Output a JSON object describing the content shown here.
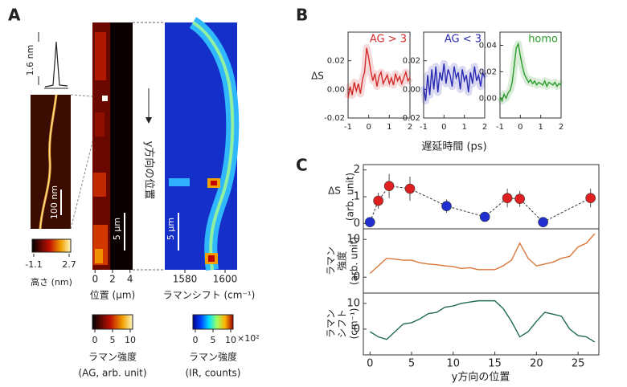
{
  "panel_labels": [
    "A",
    "B",
    "C"
  ],
  "panel_a": {
    "profile_height": "1.6 nm",
    "afm_scale": "100 nm",
    "afm_colorbar": {
      "ticks": [
        -1.1,
        2.7
      ],
      "label": "高さ (nm)"
    },
    "raman_map": {
      "xlim": [
        -0.3,
        4.3
      ],
      "xticks": [
        0,
        2,
        4
      ],
      "xlabel": "位置 (μm)",
      "ylabel": "y方向の位置",
      "scale": "5 μm"
    },
    "spectral_map": {
      "xlim": [
        1570,
        1606
      ],
      "xticks": [
        1580,
        1600
      ],
      "xlabel": "ラマンシフト (cm⁻¹)",
      "scale": "5 μm"
    },
    "colorbar_intensity": {
      "ticks": [
        0,
        5,
        10
      ],
      "label": "ラマン強度",
      "sublabel": "(AG, arb. unit)"
    },
    "colorbar_counts": {
      "ticks": [
        0,
        5,
        10
      ],
      "unit": "×10²",
      "label": "ラマン強度",
      "sublabel": "(IR, counts)"
    }
  },
  "chart_data": [
    {
      "type": "line",
      "ylabel": [
        "ΔS"
      ],
      "xlim": [
        -1,
        2
      ],
      "xticks": [
        -1,
        0,
        1,
        2
      ],
      "ylim": [
        -0.02,
        0.04
      ],
      "yticks": [
        -0.02,
        {
          "value": 0,
          "label": "0.00"
        },
        0.02
      ],
      "x": [
        -1,
        -0.9,
        -0.8,
        -0.7,
        -0.6,
        -0.5,
        -0.4,
        -0.3,
        -0.2,
        -0.1,
        0,
        0.1,
        0.2,
        0.3,
        0.4,
        0.5,
        0.6,
        0.7,
        0.8,
        0.9,
        1,
        1.1,
        1.2,
        1.3,
        1.4,
        1.5,
        1.6,
        1.7,
        1.8,
        1.9,
        2
      ],
      "series": [
        {
          "name": "AG > 3",
          "color": "#d42a2a",
          "values": [
            -0.006,
            0.002,
            -0.004,
            0.005,
            -0.001,
            0.004,
            -0.003,
            0.007,
            0.012,
            0.029,
            0.022,
            0.013,
            0.006,
            0.011,
            0.002,
            0.009,
            0.012,
            0.004,
            0.007,
            0.01,
            0.004,
            0.008,
            0.003,
            0.011,
            0.006,
            0.009,
            0.004,
            0.008,
            0.012,
            0.006,
            0.008
          ]
        }
      ]
    },
    {
      "type": "line",
      "xlabel": "遅延時間 (ps)",
      "xlim": [
        -1,
        2
      ],
      "xticks": [
        -1,
        0,
        1,
        2
      ],
      "ylim": [
        -0.02,
        0.04
      ],
      "yticks": [
        -0.02,
        {
          "value": 0,
          "label": "0.00"
        },
        0.02
      ],
      "x": [
        -1,
        -0.9,
        -0.8,
        -0.7,
        -0.6,
        -0.5,
        -0.4,
        -0.3,
        -0.2,
        -0.1,
        0,
        0.1,
        0.2,
        0.3,
        0.4,
        0.5,
        0.6,
        0.7,
        0.8,
        0.9,
        1,
        1.1,
        1.2,
        1.3,
        1.4,
        1.5,
        1.6,
        1.7,
        1.8,
        1.9,
        2
      ],
      "series": [
        {
          "name": "AG < 3",
          "color": "#2a2ab4",
          "values": [
            0.002,
            -0.008,
            0.01,
            -0.004,
            0.014,
            0.0,
            0.016,
            -0.002,
            0.012,
            0.006,
            0.018,
            0.004,
            0.014,
            0.01,
            0.002,
            0.016,
            0.008,
            0.012,
            0.0,
            0.014,
            0.006,
            0.01,
            -0.002,
            0.012,
            0.004,
            0.016,
            0.006,
            0.01,
            0.002,
            0.012,
            0.008
          ]
        }
      ]
    },
    {
      "type": "line",
      "xlim": [
        -1,
        2
      ],
      "xticks": [
        -1,
        0,
        1,
        2
      ],
      "ylim": [
        -0.015,
        0.05
      ],
      "yticks": [
        {
          "value": 0,
          "label": "0.00"
        },
        0.02,
        0.04
      ],
      "x": [
        -1,
        -0.9,
        -0.8,
        -0.7,
        -0.6,
        -0.5,
        -0.4,
        -0.3,
        -0.2,
        -0.1,
        0,
        0.1,
        0.2,
        0.3,
        0.4,
        0.5,
        0.6,
        0.7,
        0.8,
        0.9,
        1,
        1.1,
        1.2,
        1.3,
        1.4,
        1.5,
        1.6,
        1.7,
        1.8,
        1.9,
        2
      ],
      "series": [
        {
          "name": "homo",
          "color": "#2a9a2a",
          "values": [
            0.001,
            -0.002,
            0.003,
            0.0,
            0.004,
            0.006,
            0.012,
            0.025,
            0.038,
            0.041,
            0.032,
            0.024,
            0.018,
            0.015,
            0.012,
            0.014,
            0.011,
            0.013,
            0.01,
            0.012,
            0.011,
            0.01,
            0.013,
            0.009,
            0.012,
            0.011,
            0.01,
            0.012,
            0.009,
            0.011,
            0.01
          ]
        }
      ]
    },
    {
      "type": "scatter",
      "ylabel": [
        "ΔS",
        "(arb. unit)"
      ],
      "xlim": [
        -0.8,
        27.5
      ],
      "ylim": [
        -0.2,
        2.2
      ],
      "yticks": [
        0,
        1,
        2
      ],
      "x": [
        0,
        1,
        2.3,
        4.8,
        9.2,
        13.8,
        16.5,
        18,
        20.8,
        26.5
      ],
      "series": [
        {
          "values": [
            0.05,
            0.85,
            1.4,
            1.3,
            0.65,
            0.25,
            0.95,
            0.92,
            0.05,
            0.95
          ],
          "errors": [
            0,
            0.3,
            0.45,
            0.45,
            0.25,
            0.15,
            0.35,
            0.3,
            0,
            0.35
          ],
          "color": "#333333",
          "point_colors": [
            "#1f2fd0",
            "#e02020",
            "#e02020",
            "#e02020",
            "#1f2fd0",
            "#1f2fd0",
            "#e02020",
            "#e02020",
            "#1f2fd0",
            "#e02020"
          ]
        }
      ]
    },
    {
      "type": "line",
      "ylabel": [
        "ラマン",
        "強度",
        "(arb. unit)"
      ],
      "xlim": [
        -0.8,
        27.5
      ],
      "ylim": [
        -4.2,
        12.8
      ],
      "yticks": [
        0,
        10
      ],
      "x": [
        0,
        1,
        2,
        3,
        4,
        5,
        6,
        7,
        8,
        9,
        10,
        11,
        12,
        13,
        14,
        15,
        16,
        17,
        18,
        19,
        20,
        21,
        22,
        23,
        24,
        25,
        26,
        27
      ],
      "series": [
        {
          "color": "#d9773a",
          "values": [
            1,
            3,
            5,
            4.8,
            4.5,
            4.5,
            3.8,
            3.5,
            3.3,
            3,
            2.8,
            2.3,
            2.5,
            2,
            2,
            2,
            3,
            4.5,
            9,
            5,
            3,
            3.5,
            4,
            5,
            5.5,
            8,
            9,
            11.5
          ]
        }
      ]
    },
    {
      "type": "line",
      "ylabel": [
        "ラマン",
        "シフト",
        "(cm⁻¹)"
      ],
      "xlabel": "y方向の位置",
      "xlim": [
        -0.8,
        27.5
      ],
      "xticks": [
        0,
        5,
        10,
        15,
        20,
        25
      ],
      "ylim": [
        -10,
        14
      ],
      "yticks": [
        0,
        10
      ],
      "x": [
        0,
        1,
        2,
        3,
        4,
        5,
        6,
        7,
        8,
        9,
        10,
        11,
        12,
        13,
        14,
        15,
        16,
        17,
        18,
        19,
        20,
        21,
        22,
        23,
        24,
        25,
        26,
        27
      ],
      "series": [
        {
          "color": "#1f6b4a",
          "values": [
            -1,
            -3,
            -4,
            -1,
            2,
            2.5,
            4,
            6,
            6.5,
            8.5,
            9,
            10,
            10.5,
            11,
            11,
            11,
            8,
            3,
            -3,
            -1,
            3,
            6.5,
            5.8,
            5,
            0,
            -2.5,
            -3,
            -5
          ]
        }
      ]
    }
  ]
}
